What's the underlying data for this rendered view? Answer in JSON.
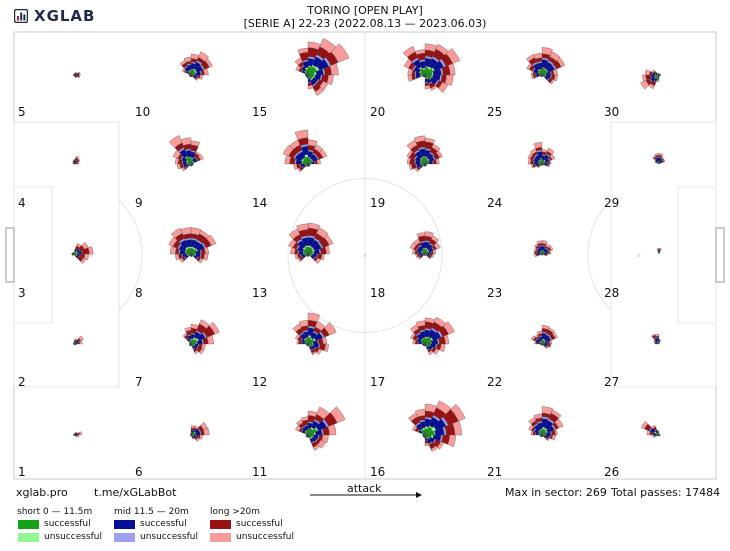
{
  "brand": {
    "name": "XGLAB"
  },
  "header": {
    "title_line1": "TORINO [OPEN PLAY]",
    "title_line2": "[SERIE A] 22-23 (2022.08.13 — 2023.06.03)"
  },
  "footer": {
    "site": "xglab.pro",
    "telegram": "t.me/xGLabBot",
    "attack_label": "attack",
    "max_in_sector": "Max in sector: 269",
    "total_passes": "Total passes: 17484"
  },
  "legend": {
    "groups": [
      {
        "title": "short 0 — 11.5m",
        "items": [
          {
            "label": "successful",
            "color": "#16a216"
          },
          {
            "label": "unsuccessful",
            "color": "#92f692"
          }
        ]
      },
      {
        "title": "mid 11.5 — 20m",
        "items": [
          {
            "label": "successful",
            "color": "#060f95"
          },
          {
            "label": "unsuccessful",
            "color": "#9d9ff0"
          }
        ]
      },
      {
        "title": "long >20m",
        "items": [
          {
            "label": "successful",
            "color": "#971313"
          },
          {
            "label": "unsuccessful",
            "color": "#f89b9b"
          }
        ]
      }
    ]
  },
  "chart_data": {
    "type": "radial-pass-map",
    "title": "TORINO [OPEN PLAY]",
    "subtitle": "[SERIE A] 22-23 (2022.08.13 — 2023.06.03)",
    "max_in_sector": 269,
    "total_passes": 17484,
    "zones": [
      {
        "id": "1",
        "col": 0,
        "row": 0,
        "size": 0.12,
        "dir": 10,
        "spread": 60,
        "long_bias": 0.6
      },
      {
        "id": "2",
        "col": 0,
        "row": 1,
        "size": 0.18,
        "dir": 30,
        "spread": 90,
        "long_bias": 0.6
      },
      {
        "id": "3",
        "col": 0,
        "row": 2,
        "size": 0.5,
        "dir": 10,
        "spread": 130,
        "long_bias": 0.8
      },
      {
        "id": "4",
        "col": 0,
        "row": 3,
        "size": 0.15,
        "dir": 40,
        "spread": 90,
        "long_bias": 0.6
      },
      {
        "id": "5",
        "col": 0,
        "row": 4,
        "size": 0.08,
        "dir": 0,
        "spread": 90,
        "long_bias": 0.5
      },
      {
        "id": "6",
        "col": 1,
        "row": 0,
        "size": 0.35,
        "dir": 20,
        "spread": 160,
        "long_bias": 0.6
      },
      {
        "id": "7",
        "col": 1,
        "row": 1,
        "size": 0.65,
        "dir": 40,
        "spread": 200,
        "long_bias": 0.6
      },
      {
        "id": "8",
        "col": 1,
        "row": 2,
        "size": 0.8,
        "dir": 90,
        "spread": 270,
        "long_bias": 0.5
      },
      {
        "id": "9",
        "col": 1,
        "row": 3,
        "size": 0.7,
        "dir": 120,
        "spread": 200,
        "long_bias": 0.55
      },
      {
        "id": "10",
        "col": 1,
        "row": 4,
        "size": 0.55,
        "dir": 60,
        "spread": 210,
        "long_bias": 0.45
      },
      {
        "id": "11",
        "col": 2,
        "row": 0,
        "size": 0.9,
        "dir": 40,
        "spread": 230,
        "long_bias": 0.6
      },
      {
        "id": "12",
        "col": 2,
        "row": 1,
        "size": 0.75,
        "dir": 60,
        "spread": 250,
        "long_bias": 0.55
      },
      {
        "id": "13",
        "col": 2,
        "row": 2,
        "size": 0.8,
        "dir": 90,
        "spread": 280,
        "long_bias": 0.5
      },
      {
        "id": "14",
        "col": 2,
        "row": 3,
        "size": 0.85,
        "dir": 110,
        "spread": 220,
        "long_bias": 0.55
      },
      {
        "id": "15",
        "col": 2,
        "row": 4,
        "size": 1.0,
        "dir": 30,
        "spread": 260,
        "long_bias": 0.6
      },
      {
        "id": "16",
        "col": 3,
        "row": 0,
        "size": 1.0,
        "dir": 40,
        "spread": 240,
        "long_bias": 0.55
      },
      {
        "id": "17",
        "col": 3,
        "row": 1,
        "size": 0.8,
        "dir": 60,
        "spread": 250,
        "long_bias": 0.5
      },
      {
        "id": "18",
        "col": 3,
        "row": 2,
        "size": 0.45,
        "dir": 90,
        "spread": 260,
        "long_bias": 0.5
      },
      {
        "id": "19",
        "col": 3,
        "row": 3,
        "size": 0.75,
        "dir": 110,
        "spread": 230,
        "long_bias": 0.5
      },
      {
        "id": "20",
        "col": 3,
        "row": 4,
        "size": 0.95,
        "dir": 60,
        "spread": 300,
        "long_bias": 0.5
      },
      {
        "id": "21",
        "col": 4,
        "row": 0,
        "size": 0.6,
        "dir": 70,
        "spread": 230,
        "long_bias": 0.4
      },
      {
        "id": "22",
        "col": 4,
        "row": 1,
        "size": 0.4,
        "dir": 70,
        "spread": 230,
        "long_bias": 0.4
      },
      {
        "id": "23",
        "col": 4,
        "row": 2,
        "size": 0.3,
        "dir": 90,
        "spread": 240,
        "long_bias": 0.4
      },
      {
        "id": "24",
        "col": 4,
        "row": 3,
        "size": 0.45,
        "dir": 100,
        "spread": 230,
        "long_bias": 0.4
      },
      {
        "id": "25",
        "col": 4,
        "row": 4,
        "size": 0.65,
        "dir": 70,
        "spread": 250,
        "long_bias": 0.45
      },
      {
        "id": "26",
        "col": 5,
        "row": 0,
        "size": 0.35,
        "dir": 150,
        "spread": 100,
        "long_bias": 0.6
      },
      {
        "id": "27",
        "col": 5,
        "row": 1,
        "size": 0.15,
        "dir": 120,
        "spread": 120,
        "long_bias": 0.3
      },
      {
        "id": "28",
        "col": 5,
        "row": 2,
        "size": 0.05,
        "dir": 90,
        "spread": 60,
        "long_bias": 0.3
      },
      {
        "id": "29",
        "col": 5,
        "row": 3,
        "size": 0.2,
        "dir": 90,
        "spread": 150,
        "long_bias": 0.3
      },
      {
        "id": "30",
        "col": 5,
        "row": 4,
        "size": 0.5,
        "dir": 200,
        "spread": 120,
        "long_bias": 0.7
      }
    ]
  }
}
